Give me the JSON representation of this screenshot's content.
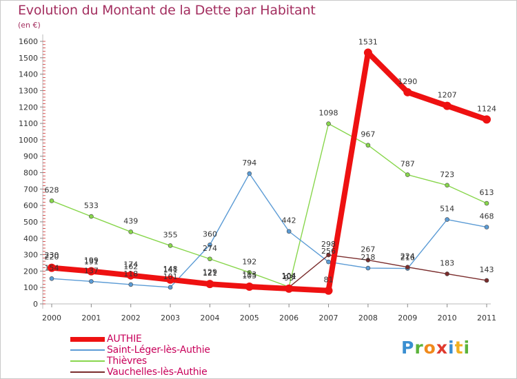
{
  "header": {
    "title": "Evolution du Montant de la Dette par Habitant",
    "unit": "(en €)"
  },
  "logo": {
    "text": "Proxiti",
    "letters": [
      {
        "ch": "P",
        "color": "#3a8fd1"
      },
      {
        "ch": "r",
        "color": "#5bb33b"
      },
      {
        "ch": "o",
        "color": "#f08a1c"
      },
      {
        "ch": "x",
        "color": "#e03a2f"
      },
      {
        "ch": "i",
        "color": "#3a8fd1"
      },
      {
        "ch": "t",
        "color": "#f0b020"
      },
      {
        "ch": "i",
        "color": "#5bb33b"
      }
    ]
  },
  "chart_data": {
    "type": "line",
    "title": "Evolution du Montant de la Dette par Habitant",
    "ylabel": "(en €)",
    "xlabel": "",
    "x": [
      "2000",
      "2001",
      "2002",
      "2003",
      "2004",
      "2005",
      "2006",
      "2007",
      "2008",
      "2009",
      "2010",
      "2011"
    ],
    "ylim": [
      0,
      1600
    ],
    "yticks": [
      0,
      100,
      200,
      300,
      400,
      500,
      600,
      700,
      800,
      900,
      1000,
      1100,
      1200,
      1300,
      1400,
      1500,
      1600
    ],
    "grid": false,
    "legend": "bottom-left",
    "series": [
      {
        "name": "AUTHIE",
        "color": "#ee1111",
        "values": [
          220,
          199,
          174,
          148,
          121,
          105,
          93,
          81,
          1531,
          1290,
          1207,
          1124
        ]
      },
      {
        "name": "Saint-Léger-lès-Authie",
        "color": "#5b9bd5",
        "values": [
          154,
          137,
          118,
          101,
          360,
          794,
          442,
          256,
          218,
          216,
          514,
          468
        ]
      },
      {
        "name": "Thièvres",
        "color": "#88d64c",
        "values": [
          628,
          533,
          439,
          355,
          274,
          192,
          104,
          1098,
          967,
          787,
          723,
          613
        ]
      },
      {
        "name": "Vauchelles-lès-Authie",
        "color": "#7a2c2c",
        "values": [
          230,
          191,
          162,
          141,
          129,
          113,
          101,
          298,
          267,
          224,
          183,
          143
        ]
      }
    ]
  }
}
